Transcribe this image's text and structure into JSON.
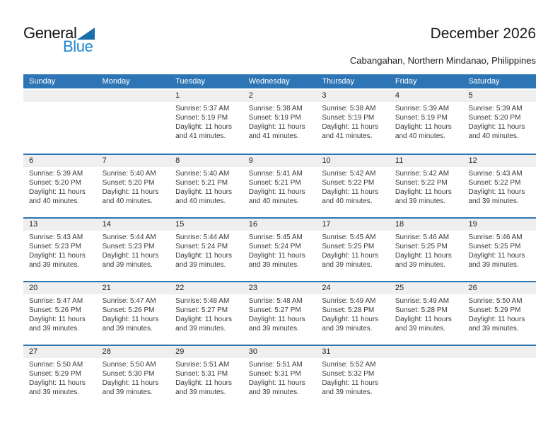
{
  "logo": {
    "line1": "General",
    "line2": "Blue"
  },
  "title": "December 2026",
  "subtitle": "Cabangahan, Northern Mindanao, Philippines",
  "colors": {
    "header_blue": "#2e75b5",
    "row_divider_blue": "#2e75b5",
    "band_gray": "#efefef",
    "logo_blue": "#1e87d2",
    "logo_triangle_blue": "#1c6fad"
  },
  "calendar": {
    "day_headers": [
      "Sunday",
      "Monday",
      "Tuesday",
      "Wednesday",
      "Thursday",
      "Friday",
      "Saturday"
    ],
    "weeks": [
      {
        "days": [
          {
            "date": "",
            "sunrise": "",
            "sunset": "",
            "daylight": ""
          },
          {
            "date": "",
            "sunrise": "",
            "sunset": "",
            "daylight": ""
          },
          {
            "date": "1",
            "sunrise": "Sunrise: 5:37 AM",
            "sunset": "Sunset: 5:19 PM",
            "daylight": "Daylight: 11 hours and 41 minutes."
          },
          {
            "date": "2",
            "sunrise": "Sunrise: 5:38 AM",
            "sunset": "Sunset: 5:19 PM",
            "daylight": "Daylight: 11 hours and 41 minutes."
          },
          {
            "date": "3",
            "sunrise": "Sunrise: 5:38 AM",
            "sunset": "Sunset: 5:19 PM",
            "daylight": "Daylight: 11 hours and 41 minutes."
          },
          {
            "date": "4",
            "sunrise": "Sunrise: 5:39 AM",
            "sunset": "Sunset: 5:19 PM",
            "daylight": "Daylight: 11 hours and 40 minutes."
          },
          {
            "date": "5",
            "sunrise": "Sunrise: 5:39 AM",
            "sunset": "Sunset: 5:20 PM",
            "daylight": "Daylight: 11 hours and 40 minutes."
          }
        ]
      },
      {
        "days": [
          {
            "date": "6",
            "sunrise": "Sunrise: 5:39 AM",
            "sunset": "Sunset: 5:20 PM",
            "daylight": "Daylight: 11 hours and 40 minutes."
          },
          {
            "date": "7",
            "sunrise": "Sunrise: 5:40 AM",
            "sunset": "Sunset: 5:20 PM",
            "daylight": "Daylight: 11 hours and 40 minutes."
          },
          {
            "date": "8",
            "sunrise": "Sunrise: 5:40 AM",
            "sunset": "Sunset: 5:21 PM",
            "daylight": "Daylight: 11 hours and 40 minutes."
          },
          {
            "date": "9",
            "sunrise": "Sunrise: 5:41 AM",
            "sunset": "Sunset: 5:21 PM",
            "daylight": "Daylight: 11 hours and 40 minutes."
          },
          {
            "date": "10",
            "sunrise": "Sunrise: 5:42 AM",
            "sunset": "Sunset: 5:22 PM",
            "daylight": "Daylight: 11 hours and 40 minutes."
          },
          {
            "date": "11",
            "sunrise": "Sunrise: 5:42 AM",
            "sunset": "Sunset: 5:22 PM",
            "daylight": "Daylight: 11 hours and 39 minutes."
          },
          {
            "date": "12",
            "sunrise": "Sunrise: 5:43 AM",
            "sunset": "Sunset: 5:22 PM",
            "daylight": "Daylight: 11 hours and 39 minutes."
          }
        ]
      },
      {
        "days": [
          {
            "date": "13",
            "sunrise": "Sunrise: 5:43 AM",
            "sunset": "Sunset: 5:23 PM",
            "daylight": "Daylight: 11 hours and 39 minutes."
          },
          {
            "date": "14",
            "sunrise": "Sunrise: 5:44 AM",
            "sunset": "Sunset: 5:23 PM",
            "daylight": "Daylight: 11 hours and 39 minutes."
          },
          {
            "date": "15",
            "sunrise": "Sunrise: 5:44 AM",
            "sunset": "Sunset: 5:24 PM",
            "daylight": "Daylight: 11 hours and 39 minutes."
          },
          {
            "date": "16",
            "sunrise": "Sunrise: 5:45 AM",
            "sunset": "Sunset: 5:24 PM",
            "daylight": "Daylight: 11 hours and 39 minutes."
          },
          {
            "date": "17",
            "sunrise": "Sunrise: 5:45 AM",
            "sunset": "Sunset: 5:25 PM",
            "daylight": "Daylight: 11 hours and 39 minutes."
          },
          {
            "date": "18",
            "sunrise": "Sunrise: 5:46 AM",
            "sunset": "Sunset: 5:25 PM",
            "daylight": "Daylight: 11 hours and 39 minutes."
          },
          {
            "date": "19",
            "sunrise": "Sunrise: 5:46 AM",
            "sunset": "Sunset: 5:25 PM",
            "daylight": "Daylight: 11 hours and 39 minutes."
          }
        ]
      },
      {
        "days": [
          {
            "date": "20",
            "sunrise": "Sunrise: 5:47 AM",
            "sunset": "Sunset: 5:26 PM",
            "daylight": "Daylight: 11 hours and 39 minutes."
          },
          {
            "date": "21",
            "sunrise": "Sunrise: 5:47 AM",
            "sunset": "Sunset: 5:26 PM",
            "daylight": "Daylight: 11 hours and 39 minutes."
          },
          {
            "date": "22",
            "sunrise": "Sunrise: 5:48 AM",
            "sunset": "Sunset: 5:27 PM",
            "daylight": "Daylight: 11 hours and 39 minutes."
          },
          {
            "date": "23",
            "sunrise": "Sunrise: 5:48 AM",
            "sunset": "Sunset: 5:27 PM",
            "daylight": "Daylight: 11 hours and 39 minutes."
          },
          {
            "date": "24",
            "sunrise": "Sunrise: 5:49 AM",
            "sunset": "Sunset: 5:28 PM",
            "daylight": "Daylight: 11 hours and 39 minutes."
          },
          {
            "date": "25",
            "sunrise": "Sunrise: 5:49 AM",
            "sunset": "Sunset: 5:28 PM",
            "daylight": "Daylight: 11 hours and 39 minutes."
          },
          {
            "date": "26",
            "sunrise": "Sunrise: 5:50 AM",
            "sunset": "Sunset: 5:29 PM",
            "daylight": "Daylight: 11 hours and 39 minutes."
          }
        ]
      },
      {
        "days": [
          {
            "date": "27",
            "sunrise": "Sunrise: 5:50 AM",
            "sunset": "Sunset: 5:29 PM",
            "daylight": "Daylight: 11 hours and 39 minutes."
          },
          {
            "date": "28",
            "sunrise": "Sunrise: 5:50 AM",
            "sunset": "Sunset: 5:30 PM",
            "daylight": "Daylight: 11 hours and 39 minutes."
          },
          {
            "date": "29",
            "sunrise": "Sunrise: 5:51 AM",
            "sunset": "Sunset: 5:31 PM",
            "daylight": "Daylight: 11 hours and 39 minutes."
          },
          {
            "date": "30",
            "sunrise": "Sunrise: 5:51 AM",
            "sunset": "Sunset: 5:31 PM",
            "daylight": "Daylight: 11 hours and 39 minutes."
          },
          {
            "date": "31",
            "sunrise": "Sunrise: 5:52 AM",
            "sunset": "Sunset: 5:32 PM",
            "daylight": "Daylight: 11 hours and 39 minutes."
          },
          {
            "date": "",
            "sunrise": "",
            "sunset": "",
            "daylight": ""
          },
          {
            "date": "",
            "sunrise": "",
            "sunset": "",
            "daylight": ""
          }
        ]
      }
    ]
  }
}
